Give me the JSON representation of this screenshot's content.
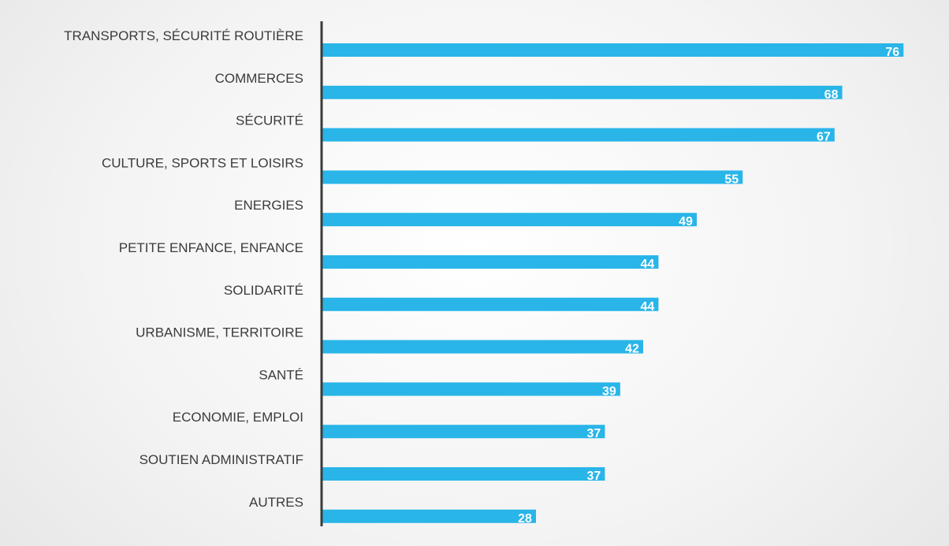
{
  "chart_data": {
    "type": "bar",
    "orientation": "horizontal",
    "categories": [
      "TRANSPORTS, SÉCURITÉ ROUTIÈRE",
      "COMMERCES",
      "SÉCURITÉ",
      "CULTURE, SPORTS ET LOISIRS",
      "ENERGIES",
      "PETITE ENFANCE, ENFANCE",
      "SOLIDARITÉ",
      "URBANISME, TERRITOIRE",
      "SANTÉ",
      "ECONOMIE, EMPLOI",
      "SOUTIEN ADMINISTRATIF",
      "AUTRES"
    ],
    "values": [
      76,
      68,
      67,
      55,
      49,
      44,
      44,
      42,
      39,
      37,
      37,
      28
    ],
    "data_labels": [
      "76",
      "68",
      "67",
      "55",
      "49",
      "44",
      "44",
      "42",
      "39",
      "37",
      "37",
      "28"
    ],
    "title": "",
    "xlabel": "",
    "ylabel": "",
    "xlim": [
      0,
      77
    ],
    "grid": false,
    "legend": "none",
    "bar_color": "#29b5e8",
    "axis_color": "#3a3a3a"
  }
}
